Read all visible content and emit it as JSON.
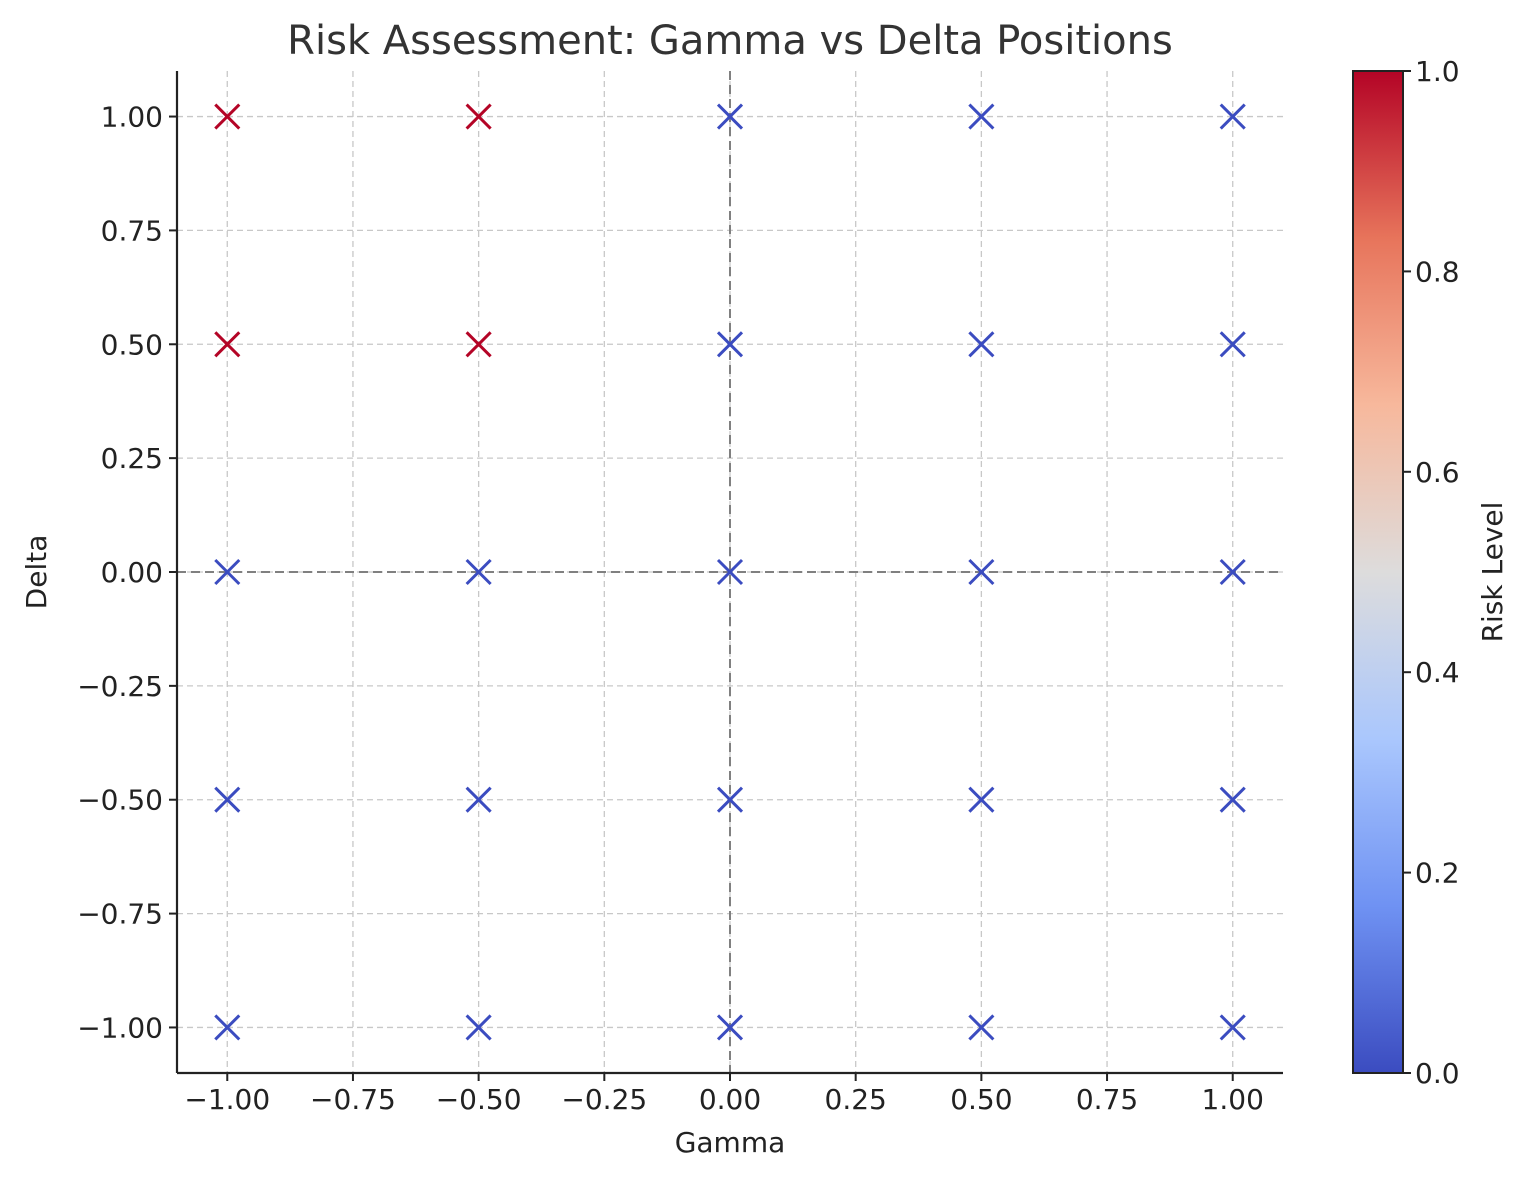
{
  "chart_data": {
    "type": "scatter",
    "title": "Risk Assessment: Gamma vs Delta Positions",
    "xlabel": "Gamma",
    "ylabel": "Delta",
    "xlim": [
      -1.1,
      1.1
    ],
    "ylim": [
      -1.1,
      1.1
    ],
    "xticks": [
      -1.0,
      -0.75,
      -0.5,
      -0.25,
      0.0,
      0.25,
      0.5,
      0.75,
      1.0
    ],
    "xtick_labels": [
      "−1.00",
      "−0.75",
      "−0.50",
      "−0.25",
      "0.00",
      "0.25",
      "0.50",
      "0.75",
      "1.00"
    ],
    "yticks": [
      -1.0,
      -0.75,
      -0.5,
      -0.25,
      0.0,
      0.25,
      0.5,
      0.75,
      1.0
    ],
    "ytick_labels": [
      "−1.00",
      "−0.75",
      "−0.50",
      "−0.25",
      "0.00",
      "0.25",
      "0.50",
      "0.75",
      "1.00"
    ],
    "grid": true,
    "reference_lines": {
      "x": 0,
      "y": 0
    },
    "marker": "x",
    "colormap": "coolwarm",
    "colormap_colors": [
      "#3b4cc0",
      "#6f92f3",
      "#aac7fd",
      "#dddcdc",
      "#f7b89c",
      "#e7745b",
      "#b40426"
    ],
    "colorbar": {
      "label": "Risk Level",
      "range": [
        0.0,
        1.0
      ],
      "ticks": [
        0.0,
        0.2,
        0.4,
        0.6,
        0.8,
        1.0
      ],
      "tick_labels": [
        "0.0",
        "0.2",
        "0.4",
        "0.6",
        "0.8",
        "1.0"
      ]
    },
    "points": [
      {
        "x": -1.0,
        "y": -1.0,
        "risk": 0
      },
      {
        "x": -0.5,
        "y": -1.0,
        "risk": 0
      },
      {
        "x": 0.0,
        "y": -1.0,
        "risk": 0
      },
      {
        "x": 0.5,
        "y": -1.0,
        "risk": 0
      },
      {
        "x": 1.0,
        "y": -1.0,
        "risk": 0
      },
      {
        "x": -1.0,
        "y": -0.5,
        "risk": 0
      },
      {
        "x": -0.5,
        "y": -0.5,
        "risk": 0
      },
      {
        "x": 0.0,
        "y": -0.5,
        "risk": 0
      },
      {
        "x": 0.5,
        "y": -0.5,
        "risk": 0
      },
      {
        "x": 1.0,
        "y": -0.5,
        "risk": 0
      },
      {
        "x": -1.0,
        "y": 0.0,
        "risk": 0
      },
      {
        "x": -0.5,
        "y": 0.0,
        "risk": 0
      },
      {
        "x": 0.0,
        "y": 0.0,
        "risk": 0
      },
      {
        "x": 0.5,
        "y": 0.0,
        "risk": 0
      },
      {
        "x": 1.0,
        "y": 0.0,
        "risk": 0
      },
      {
        "x": -1.0,
        "y": 0.5,
        "risk": 1
      },
      {
        "x": -0.5,
        "y": 0.5,
        "risk": 1
      },
      {
        "x": 0.0,
        "y": 0.5,
        "risk": 0
      },
      {
        "x": 0.5,
        "y": 0.5,
        "risk": 0
      },
      {
        "x": 1.0,
        "y": 0.5,
        "risk": 0
      },
      {
        "x": -1.0,
        "y": 1.0,
        "risk": 1
      },
      {
        "x": -0.5,
        "y": 1.0,
        "risk": 1
      },
      {
        "x": 0.0,
        "y": 1.0,
        "risk": 0
      },
      {
        "x": 0.5,
        "y": 1.0,
        "risk": 0
      },
      {
        "x": 1.0,
        "y": 1.0,
        "risk": 0
      }
    ]
  }
}
